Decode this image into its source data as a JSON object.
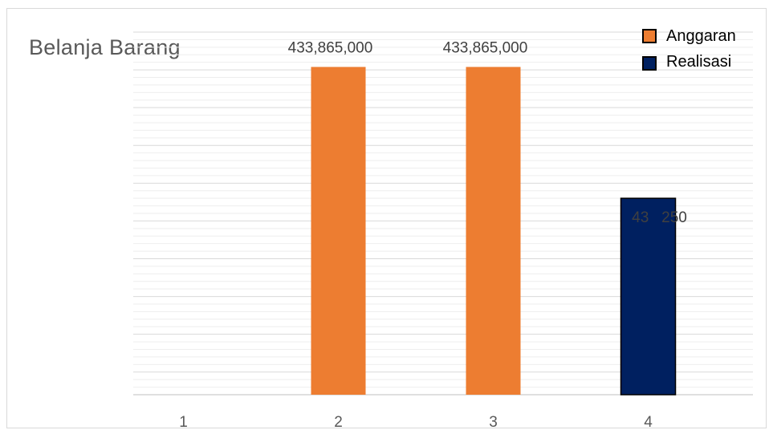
{
  "chart_data": {
    "type": "bar",
    "title": "Belanja Barang",
    "categories": [
      "1",
      "2",
      "3",
      "4"
    ],
    "series": [
      {
        "name": "Anggaran",
        "color": "#ED7D31",
        "values": [
          null,
          433865000,
          433865000,
          null
        ]
      },
      {
        "name": "Realisasi",
        "color": "#002060",
        "values": [
          null,
          null,
          null,
          260000000
        ]
      }
    ],
    "data_labels": [
      {
        "category": "2",
        "series": "Anggaran",
        "text": "433,865,000"
      },
      {
        "category": "3",
        "series": "Anggaran",
        "text": "433,865,000"
      },
      {
        "category": "4",
        "series": "Realisasi",
        "text": "43   250"
      }
    ],
    "xlabel": "",
    "ylabel": "",
    "ylim": [
      0,
      480000000
    ],
    "grid": true,
    "legend": "top-right"
  }
}
